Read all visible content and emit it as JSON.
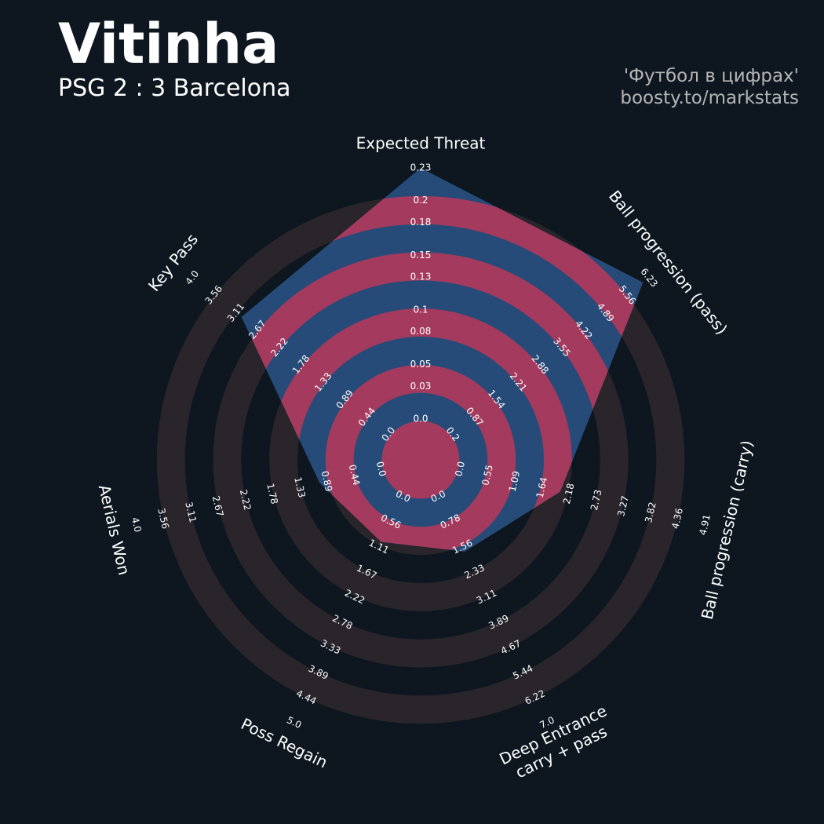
{
  "chart_data": {
    "type": "radar",
    "title": "Vitinha",
    "subtitle": "PSG 2 : 3 Barcelona",
    "credits": [
      "'Футбол в цифрах'",
      "boosty.to/markstats"
    ],
    "categories": [
      "Expected Threat",
      "Ball progression (pass)",
      "Ball progression (carry)",
      "Deep Entrance\ncarry + pass",
      "Poss Regain",
      "Aerials Won",
      "Key Pass"
    ],
    "values": [
      0.23,
      6.05,
      2.0,
      1.7,
      1.0,
      1.0,
      3.0
    ],
    "axes": [
      {
        "lim": [
          0,
          0.23
        ],
        "ticks": [
          {
            "value": 0,
            "label": "0.0"
          },
          0.03,
          0.05,
          0.08,
          0.1,
          0.13,
          0.15,
          0.18,
          0.2,
          0.23
        ]
      },
      {
        "lim": [
          0.2,
          6.23
        ],
        "ticks": [
          0.2,
          0.87,
          1.54,
          2.21,
          2.88,
          3.55,
          4.22,
          4.89,
          5.56,
          6.23
        ]
      },
      {
        "lim": [
          0,
          4.91
        ],
        "ticks": [
          {
            "value": 0,
            "label": "0.0"
          },
          0.55,
          1.09,
          1.64,
          2.18,
          2.73,
          3.27,
          3.82,
          4.36,
          4.91
        ]
      },
      {
        "lim": [
          0,
          7
        ],
        "ticks": [
          {
            "value": 0,
            "label": "0.0"
          },
          0.78,
          1.56,
          2.33,
          3.11,
          3.89,
          4.67,
          5.44,
          6.22,
          {
            "value": 7,
            "label": "7.0"
          }
        ]
      },
      {
        "lim": [
          0,
          5
        ],
        "ticks": [
          {
            "value": 0,
            "label": "0.0"
          },
          0.56,
          1.11,
          1.67,
          2.22,
          2.78,
          3.33,
          3.89,
          4.44,
          {
            "value": 5,
            "label": "5.0"
          }
        ]
      },
      {
        "lim": [
          0,
          4
        ],
        "ticks": [
          {
            "value": 0,
            "label": "0.0"
          },
          0.44,
          0.89,
          1.33,
          1.78,
          2.22,
          2.67,
          3.11,
          3.56,
          {
            "value": 4,
            "label": "4.0"
          }
        ]
      },
      {
        "lim": [
          0,
          4
        ],
        "ticks": [
          {
            "value": 0,
            "label": "0.0"
          },
          0.44,
          0.89,
          1.33,
          1.78,
          2.22,
          2.67,
          3.11,
          3.56,
          {
            "value": 4,
            "label": "4.0"
          }
        ]
      }
    ],
    "colors": {
      "polygon": "#274b78",
      "rings_inside": "#a43a5e",
      "rings_outside": "#29252b",
      "background": "#0e1720"
    }
  }
}
